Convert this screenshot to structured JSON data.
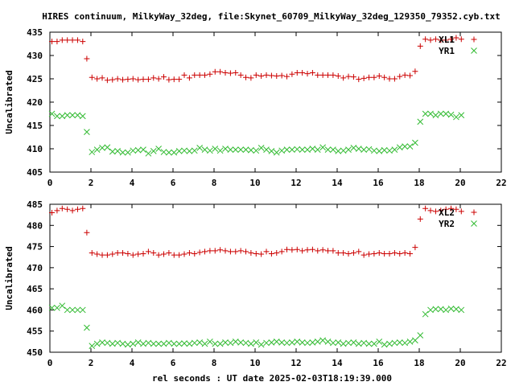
{
  "title": "HIRES continuum, MilkyWay_32deg, file:Skynet_60709_MilkyWay_32deg_129350_79352.cyb.txt",
  "xlabel": "rel seconds : UT date 2025-02-03T18:19:39.000",
  "colors": {
    "XL": "#cc0000",
    "YR": "#33bb33"
  },
  "chart_data": [
    {
      "type": "scatter",
      "ylabel": "Uncalibrated",
      "xlim": [
        0,
        22
      ],
      "ylim": [
        405,
        435
      ],
      "xticks": [
        "0",
        "2",
        "4",
        "6",
        "8",
        "10",
        "12",
        "14",
        "16",
        "18",
        "20",
        "22"
      ],
      "yticks": [
        "405",
        "410",
        "415",
        "420",
        "425",
        "430",
        "435"
      ],
      "legend_position": "top-right",
      "series": [
        {
          "name": "XL1",
          "marker": "plus",
          "x": [
            0.1,
            0.35,
            0.6,
            0.85,
            1.1,
            1.35,
            1.6,
            1.8,
            2.05,
            2.3,
            2.55,
            2.8,
            3.05,
            3.3,
            3.55,
            3.8,
            4.05,
            4.3,
            4.55,
            4.8,
            5.05,
            5.3,
            5.55,
            5.8,
            6.05,
            6.3,
            6.55,
            6.8,
            7.05,
            7.3,
            7.55,
            7.8,
            8.05,
            8.3,
            8.55,
            8.8,
            9.05,
            9.3,
            9.55,
            9.8,
            10.05,
            10.3,
            10.55,
            10.8,
            11.05,
            11.3,
            11.55,
            11.8,
            12.05,
            12.3,
            12.55,
            12.8,
            13.05,
            13.3,
            13.55,
            13.8,
            14.05,
            14.3,
            14.55,
            14.8,
            15.05,
            15.3,
            15.55,
            15.8,
            16.05,
            16.3,
            16.55,
            16.8,
            17.05,
            17.3,
            17.55,
            17.8,
            18.05,
            18.3,
            18.55,
            18.8,
            19.05,
            19.3,
            19.55,
            19.8,
            20.05
          ],
          "y": [
            433,
            433,
            433.3,
            433.3,
            433.3,
            433.3,
            433,
            429.3,
            425.3,
            425,
            425.2,
            424.7,
            424.8,
            425,
            424.8,
            424.9,
            425,
            424.8,
            424.9,
            424.9,
            425.2,
            425,
            425.4,
            424.8,
            424.9,
            424.9,
            425.8,
            425.2,
            425.8,
            425.8,
            425.8,
            426,
            426.5,
            426.5,
            426.3,
            426.2,
            426.3,
            425.8,
            425.3,
            425.2,
            425.8,
            425.6,
            425.8,
            425.7,
            425.6,
            425.7,
            425.5,
            426,
            426.3,
            426.3,
            426.1,
            426.3,
            425.8,
            425.8,
            425.8,
            425.8,
            425.6,
            425.2,
            425.5,
            425.4,
            424.9,
            425.1,
            425.3,
            425.3,
            425.6,
            425.3,
            425,
            425,
            425.5,
            425.8,
            425.7,
            426.6,
            432,
            433.5,
            433.3,
            433.5,
            433.3,
            433.3,
            433.5,
            433.8,
            433.5
          ]
        },
        {
          "name": "YR1",
          "marker": "cross",
          "x": [
            0.1,
            0.35,
            0.6,
            0.85,
            1.1,
            1.35,
            1.6,
            1.8,
            2.05,
            2.3,
            2.55,
            2.8,
            3.05,
            3.3,
            3.55,
            3.8,
            4.05,
            4.3,
            4.55,
            4.8,
            5.05,
            5.3,
            5.55,
            5.8,
            6.05,
            6.3,
            6.55,
            6.8,
            7.05,
            7.3,
            7.55,
            7.8,
            8.05,
            8.3,
            8.55,
            8.8,
            9.05,
            9.3,
            9.55,
            9.8,
            10.05,
            10.3,
            10.55,
            10.8,
            11.05,
            11.3,
            11.55,
            11.8,
            12.05,
            12.3,
            12.55,
            12.8,
            13.05,
            13.3,
            13.55,
            13.8,
            14.05,
            14.3,
            14.55,
            14.8,
            15.05,
            15.3,
            15.55,
            15.8,
            16.05,
            16.3,
            16.55,
            16.8,
            17.05,
            17.3,
            17.55,
            17.8,
            18.05,
            18.3,
            18.55,
            18.8,
            19.05,
            19.3,
            19.55,
            19.8,
            20.05
          ],
          "y": [
            417.5,
            417,
            417,
            417.2,
            417.2,
            417.2,
            417,
            413.6,
            409.3,
            409.8,
            410.2,
            410.3,
            409.4,
            409.5,
            409.2,
            409.2,
            409.6,
            409.7,
            409.8,
            409,
            409.5,
            410,
            409.3,
            409.2,
            409.2,
            409.5,
            409.6,
            409.5,
            409.6,
            410.2,
            409.8,
            409.6,
            410,
            409.6,
            410,
            409.8,
            409.8,
            409.8,
            409.8,
            409.7,
            409.6,
            410.2,
            409.8,
            409.5,
            409.2,
            409.6,
            409.8,
            409.8,
            409.9,
            409.8,
            409.8,
            410,
            409.8,
            410.3,
            409.8,
            409.8,
            409.5,
            409.6,
            409.8,
            410.2,
            410,
            409.8,
            409.9,
            409.6,
            409.5,
            409.7,
            409.6,
            409.8,
            410.3,
            410.5,
            410.5,
            411.3,
            415.8,
            417.5,
            417.5,
            417.2,
            417.5,
            417.5,
            417.3,
            416.8,
            417.2
          ]
        }
      ]
    },
    {
      "type": "scatter",
      "ylabel": "Uncalibrated",
      "xlim": [
        0,
        22
      ],
      "ylim": [
        450,
        485
      ],
      "xticks": [
        "0",
        "2",
        "4",
        "6",
        "8",
        "10",
        "12",
        "14",
        "16",
        "18",
        "20",
        "22"
      ],
      "yticks": [
        "450",
        "455",
        "460",
        "465",
        "470",
        "475",
        "480",
        "485"
      ],
      "legend_position": "top-right",
      "series": [
        {
          "name": "XL2",
          "marker": "plus",
          "x": [
            0.1,
            0.35,
            0.6,
            0.85,
            1.1,
            1.35,
            1.6,
            1.8,
            2.05,
            2.3,
            2.55,
            2.8,
            3.05,
            3.3,
            3.55,
            3.8,
            4.05,
            4.3,
            4.55,
            4.8,
            5.05,
            5.3,
            5.55,
            5.8,
            6.05,
            6.3,
            6.55,
            6.8,
            7.05,
            7.3,
            7.55,
            7.8,
            8.05,
            8.3,
            8.55,
            8.8,
            9.05,
            9.3,
            9.55,
            9.8,
            10.05,
            10.3,
            10.55,
            10.8,
            11.05,
            11.3,
            11.55,
            11.8,
            12.05,
            12.3,
            12.55,
            12.8,
            13.05,
            13.3,
            13.55,
            13.8,
            14.05,
            14.3,
            14.55,
            14.8,
            15.05,
            15.3,
            15.55,
            15.8,
            16.05,
            16.3,
            16.55,
            16.8,
            17.05,
            17.3,
            17.55,
            17.8,
            18.05,
            18.3,
            18.55,
            18.8,
            19.05,
            19.3,
            19.55,
            19.8,
            20.05
          ],
          "y": [
            483,
            483.5,
            484,
            483.8,
            483.5,
            483.8,
            484,
            478.3,
            473.5,
            473.2,
            473,
            473,
            473.2,
            473.5,
            473.5,
            473.3,
            473,
            473.2,
            473.3,
            473.8,
            473.5,
            473,
            473.2,
            473.5,
            473,
            473,
            473.2,
            473.5,
            473.3,
            473.6,
            473.8,
            474,
            474,
            474.2,
            474,
            473.8,
            473.8,
            474,
            473.8,
            473.5,
            473.3,
            473.2,
            473.8,
            473.3,
            473.5,
            473.8,
            474.3,
            474.2,
            474.3,
            474,
            474.2,
            474.3,
            474,
            474.2,
            474,
            474,
            473.5,
            473.5,
            473.3,
            473.5,
            473.8,
            473,
            473.2,
            473.3,
            473.5,
            473.3,
            473.3,
            473.5,
            473.3,
            473.5,
            473.3,
            474.8,
            481.5,
            484,
            483.5,
            483.3,
            483.5,
            483.8,
            484,
            483.8,
            483.3
          ]
        },
        {
          "name": "YR2",
          "marker": "cross",
          "x": [
            0.1,
            0.35,
            0.6,
            0.85,
            1.1,
            1.35,
            1.6,
            1.8,
            2.05,
            2.3,
            2.55,
            2.8,
            3.05,
            3.3,
            3.55,
            3.8,
            4.05,
            4.3,
            4.55,
            4.8,
            5.05,
            5.3,
            5.55,
            5.8,
            6.05,
            6.3,
            6.55,
            6.8,
            7.05,
            7.3,
            7.55,
            7.8,
            8.05,
            8.3,
            8.55,
            8.8,
            9.05,
            9.3,
            9.55,
            9.8,
            10.05,
            10.3,
            10.55,
            10.8,
            11.05,
            11.3,
            11.55,
            11.8,
            12.05,
            12.3,
            12.55,
            12.8,
            13.05,
            13.3,
            13.55,
            13.8,
            14.05,
            14.3,
            14.55,
            14.8,
            15.05,
            15.3,
            15.55,
            15.8,
            16.05,
            16.3,
            16.55,
            16.8,
            17.05,
            17.3,
            17.55,
            17.8,
            18.05,
            18.3,
            18.55,
            18.8,
            19.05,
            19.3,
            19.55,
            19.8,
            20.05
          ],
          "y": [
            460.5,
            460.5,
            461,
            460,
            460,
            460,
            460,
            455.8,
            451.5,
            452,
            452.3,
            452.2,
            452,
            452.2,
            452,
            451.8,
            452,
            452.3,
            452,
            452.2,
            452,
            452,
            452,
            452.2,
            452,
            452,
            452.1,
            452,
            452.2,
            452.3,
            452,
            452.5,
            452,
            452,
            452.3,
            452.2,
            452.5,
            452.3,
            452.2,
            452,
            452.3,
            451.8,
            452.2,
            452.3,
            452.5,
            452.3,
            452.2,
            452.3,
            452.5,
            452.3,
            452.2,
            452.3,
            452.5,
            452.8,
            452.5,
            452.2,
            452.3,
            452,
            452.2,
            452.3,
            452,
            452.2,
            452,
            452,
            452.5,
            451.8,
            452,
            452.2,
            452.3,
            452.2,
            452.5,
            452.8,
            454,
            459,
            460,
            460.2,
            460.2,
            460,
            460.3,
            460.2,
            460
          ]
        }
      ]
    }
  ]
}
